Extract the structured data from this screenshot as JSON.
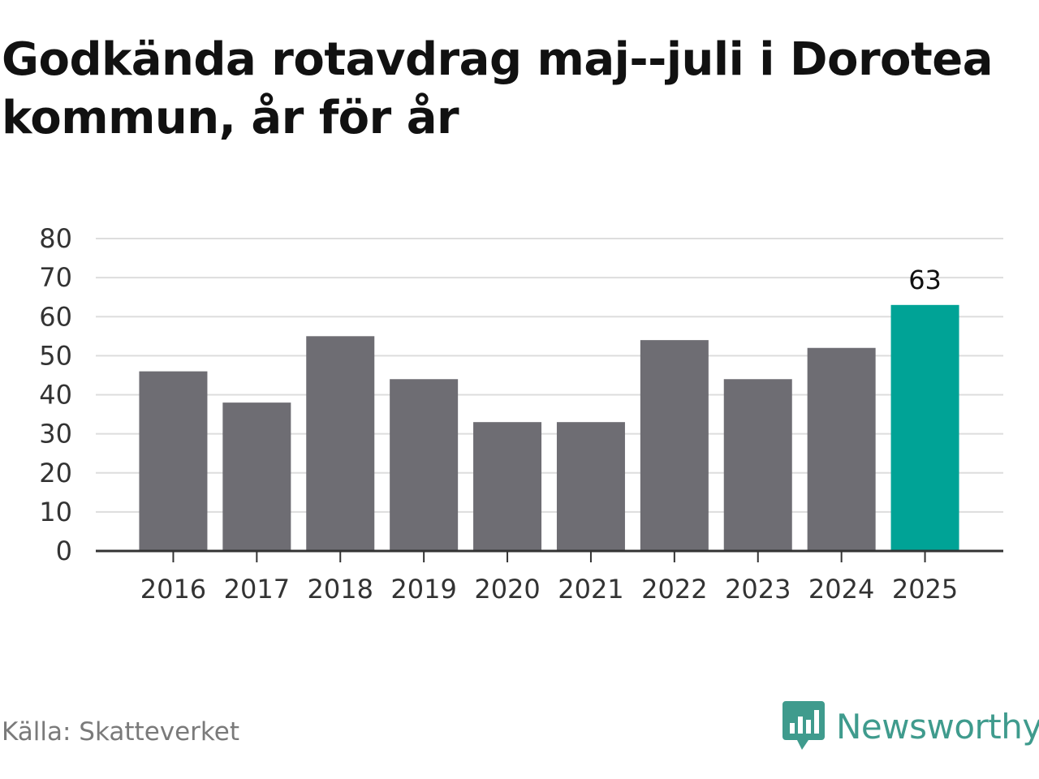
{
  "chart_data": {
    "type": "bar",
    "title": "Godkända rotavdrag maj--juli i Dorotea kommun, år för år",
    "categories": [
      "2016",
      "2017",
      "2018",
      "2019",
      "2020",
      "2021",
      "2022",
      "2023",
      "2024",
      "2025"
    ],
    "values": [
      46,
      38,
      55,
      44,
      33,
      33,
      54,
      44,
      52,
      63
    ],
    "highlight_index": 9,
    "data_labels": {
      "9": "63"
    },
    "ylim": [
      0,
      80
    ],
    "yticks": [
      0,
      10,
      20,
      30,
      40,
      50,
      60,
      70,
      80
    ],
    "xlabel": "",
    "ylabel": "",
    "grid": true,
    "colors": {
      "bar": "#6e6d73",
      "highlight": "#00a396",
      "grid": "#dddddd",
      "axis": "#333333"
    }
  },
  "footer": {
    "source": "Källa: Skatteverket",
    "brand": "Newsworthy"
  },
  "logo": {
    "icon": "newsworthy-logo-icon",
    "color": "#3f9b8d"
  }
}
